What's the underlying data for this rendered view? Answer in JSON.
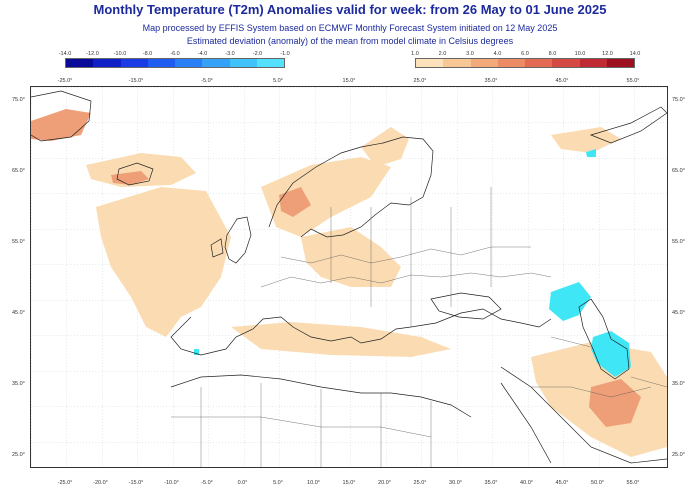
{
  "title": "Monthly Temperature (T2m) Anomalies valid for week: from 26 May to 01 June 2025",
  "subtitle1": "Map processed by EFFIS System based on ECMWF Monthly Forecast System initiated on 12 May 2025",
  "subtitle2": "Estimated deviation (anomaly) of the mean from model climate in Celsius degrees",
  "legend_cold": {
    "labels": [
      "-14.0",
      "-12.0",
      "-10.0",
      "-8.0",
      "-6.0",
      "-4.0",
      "-3.0",
      "-2.0",
      "-1.0"
    ],
    "colors": [
      "#0a0a9a",
      "#1020c8",
      "#1a3ae6",
      "#1f5cf0",
      "#2a7ff5",
      "#35a2f8",
      "#40c2fb",
      "#55e0fd"
    ]
  },
  "legend_warm": {
    "labels": [
      "1.0",
      "2.0",
      "3.0",
      "4.0",
      "6.0",
      "8.0",
      "10.0",
      "12.0",
      "14.0"
    ],
    "colors": [
      "#fbe2bb",
      "#f7c896",
      "#f2aa7a",
      "#ec8c66",
      "#e36a53",
      "#d44a42",
      "#c02a33",
      "#9e1020"
    ]
  },
  "lat_labels": [
    "75.0°",
    "65.0°",
    "55.0°",
    "45.0°",
    "35.0°",
    "25.0°"
  ],
  "lon_labels_top": [
    "-25.0°",
    "-15.0°",
    "-5.0°",
    "5.0°",
    "15.0°",
    "25.0°",
    "35.0°",
    "45.0°",
    "55.0°"
  ],
  "lon_labels_bottom": [
    "-25.0°",
    "-20.0°",
    "-15.0°",
    "-10.0°",
    "-5.0°",
    "0.0°",
    "5.0°",
    "10.0°",
    "15.0°",
    "20.0°",
    "25.0°",
    "30.0°",
    "35.0°",
    "40.0°",
    "45.0°",
    "50.0°",
    "55.0°"
  ]
}
